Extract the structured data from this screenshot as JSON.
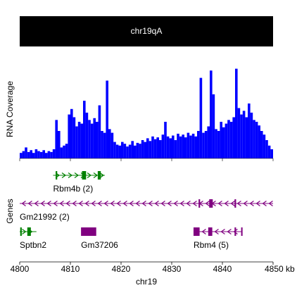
{
  "ideogram": {
    "label": "chr19qA",
    "color": "#000000"
  },
  "chart_data": [
    {
      "type": "histogram",
      "ylabel": "RNA Coverage",
      "color": "#0000ff",
      "xlim": [
        4800,
        4850
      ],
      "ylim": [
        0,
        100
      ],
      "bins": [
        4800,
        4800.5,
        4801,
        4801.5,
        4802,
        4802.5,
        4803,
        4803.5,
        4804,
        4804.5,
        4805,
        4805.5,
        4806,
        4806.5,
        4807,
        4807.5,
        4808,
        4808.5,
        4809,
        4809.5,
        4810,
        4810.5,
        4811,
        4811.5,
        4812,
        4812.5,
        4813,
        4813.5,
        4814,
        4814.5,
        4815,
        4815.5,
        4816,
        4816.5,
        4817,
        4817.5,
        4818,
        4818.5,
        4819,
        4819.5,
        4820,
        4820.5,
        4821,
        4821.5,
        4822,
        4822.5,
        4823,
        4823.5,
        4824,
        4824.5,
        4825,
        4825.5,
        4826,
        4826.5,
        4827,
        4827.5,
        4828,
        4828.5,
        4829,
        4829.5,
        4830,
        4830.5,
        4831,
        4831.5,
        4832,
        4832.5,
        4833,
        4833.5,
        4834,
        4834.5,
        4835,
        4835.5,
        4836,
        4836.5,
        4837,
        4837.5,
        4838,
        4838.5,
        4839,
        4839.5,
        4840,
        4840.5,
        4841,
        4841.5,
        4842,
        4842.5,
        4843,
        4843.5,
        4844,
        4844.5,
        4845,
        4845.5,
        4846,
        4846.5,
        4847,
        4847.5,
        4848,
        4848.5,
        4849,
        4849.5,
        4850
      ],
      "values": [
        6,
        8,
        12,
        7,
        9,
        6,
        10,
        8,
        7,
        9,
        6,
        8,
        7,
        10,
        42,
        30,
        12,
        14,
        16,
        48,
        54,
        45,
        35,
        40,
        38,
        63,
        50,
        42,
        38,
        44,
        40,
        58,
        30,
        28,
        85,
        32,
        28,
        18,
        15,
        14,
        18,
        16,
        13,
        15,
        19,
        14,
        17,
        16,
        20,
        18,
        22,
        19,
        24,
        21,
        23,
        20,
        26,
        40,
        24,
        22,
        25,
        20,
        27,
        24,
        26,
        23,
        28,
        25,
        27,
        24,
        30,
        88,
        28,
        30,
        35,
        96,
        70,
        32,
        30,
        40,
        34,
        38,
        42,
        40,
        45,
        98,
        55,
        48,
        52,
        45,
        60,
        50,
        42,
        40,
        36,
        30,
        26,
        20,
        14,
        10
      ]
    },
    {
      "type": "genes",
      "ylabel": "Genes",
      "xlabel": "chr19",
      "xlim": [
        4800,
        4850
      ],
      "xticks": [
        4800,
        4810,
        4820,
        4830,
        4840,
        {
          "value": 4850,
          "label": "4850 kb"
        }
      ],
      "genes": [
        {
          "name": "Rbm4b (2)",
          "color": "#008000",
          "strand": "+",
          "row": 0,
          "start": 4806.6,
          "end": 4816.8,
          "exons": [
            [
              4807.1,
              4807.4
            ],
            [
              4812.3,
              4813.1
            ],
            [
              4815.4,
              4816.0
            ]
          ]
        },
        {
          "name": "Gm21992 (2)",
          "color": "#800080",
          "strand": "-",
          "row": 1,
          "start": 4800,
          "end": 4850,
          "exons": [
            [
              4835.3,
              4835.6
            ],
            [
              4837.4,
              4838.1
            ],
            [
              4842.4,
              4842.7
            ]
          ]
        },
        {
          "name": "Sptbn2",
          "color": "#008000",
          "strand": "+",
          "row": 2,
          "start": 4800,
          "end": 4803.3,
          "exons": [
            [
              4800.1,
              4800.4
            ],
            [
              4801.5,
              4802.2
            ]
          ]
        },
        {
          "name": "Gm37206",
          "color": "#800080",
          "strand": null,
          "row": 2,
          "start": 4812.1,
          "end": 4815.1,
          "exons": [
            [
              4812.1,
              4815.1
            ]
          ]
        },
        {
          "name": "Rbm4 (5)",
          "color": "#800080",
          "strand": "-",
          "row": 2,
          "start": 4834.3,
          "end": 4843.9,
          "exons": [
            [
              4834.3,
              4835.5
            ],
            [
              4837.2,
              4838.0
            ],
            [
              4842.4,
              4842.7
            ],
            [
              4843.7,
              4843.9
            ]
          ]
        }
      ]
    }
  ]
}
